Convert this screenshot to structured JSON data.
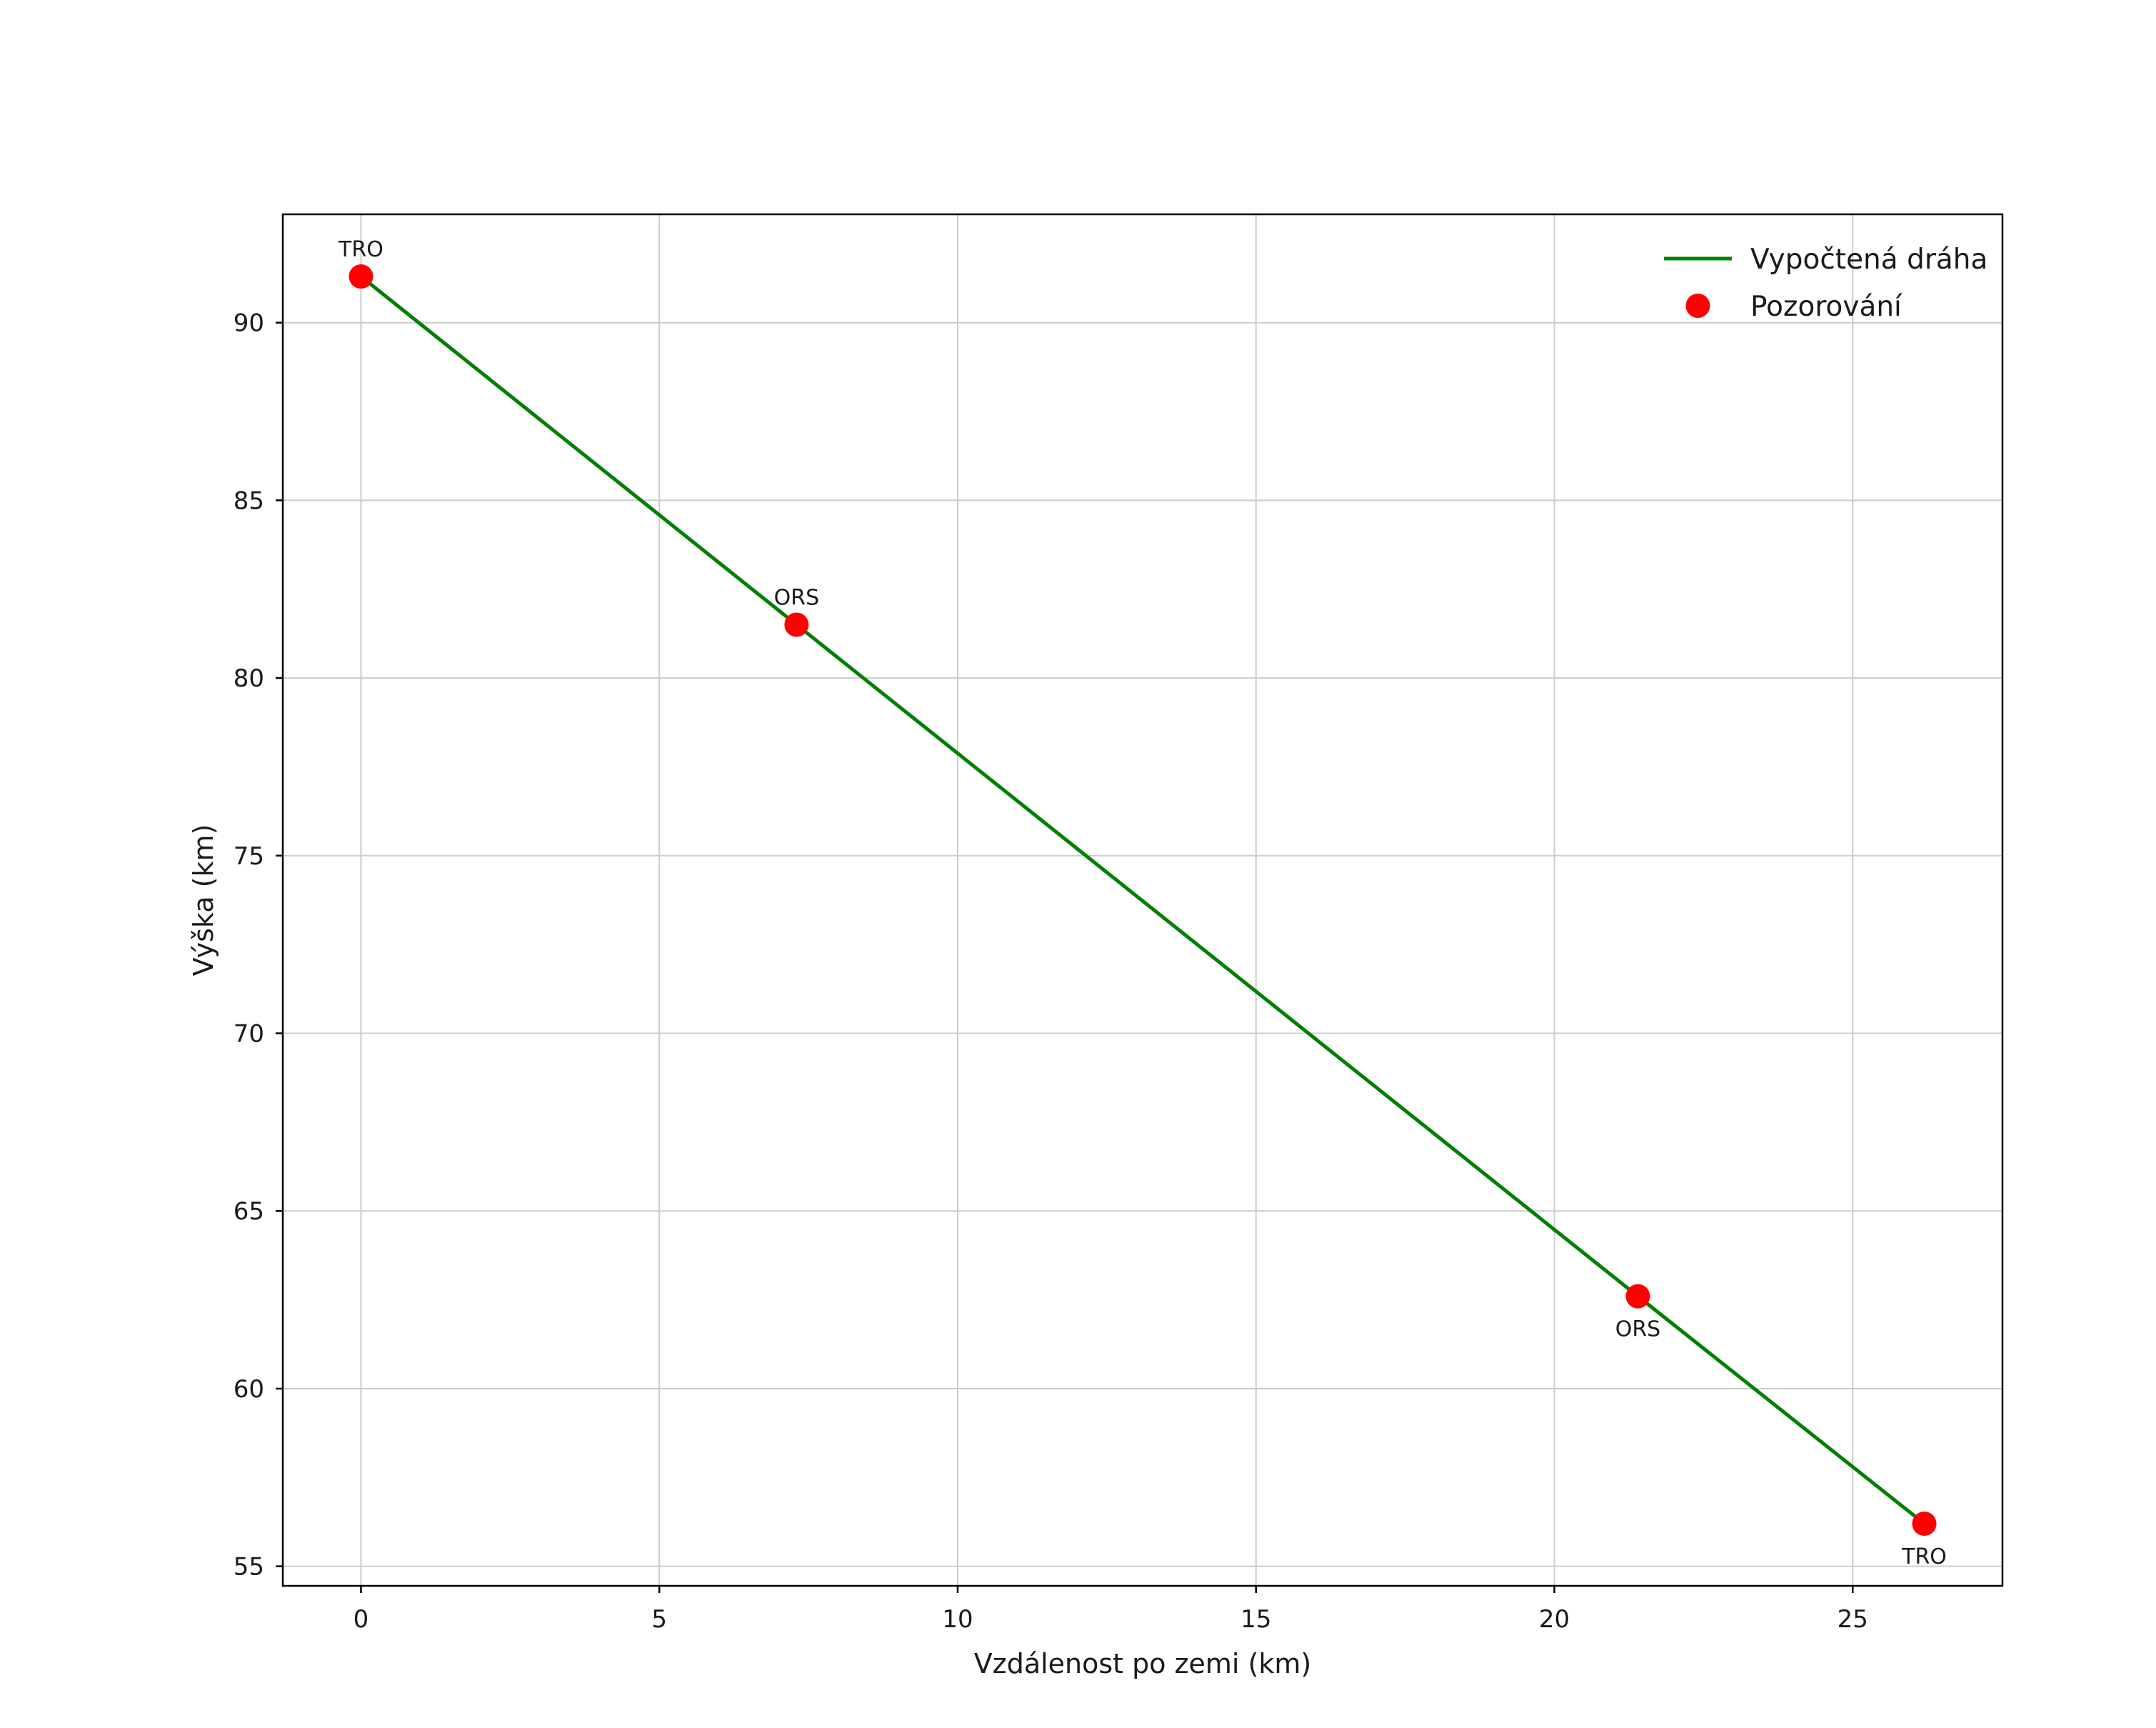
{
  "chart_data": {
    "type": "line",
    "title": "",
    "xlabel": "Vzdálenost po zemi (km)",
    "ylabel": "Výška (km)",
    "xlim": [
      -1.31,
      27.51
    ],
    "ylim": [
      54.45,
      93.05
    ],
    "xticks": [
      0,
      5,
      10,
      15,
      20,
      25
    ],
    "yticks": [
      55,
      60,
      65,
      70,
      75,
      80,
      85,
      90
    ],
    "grid": true,
    "colors": {
      "line": "#008000",
      "points": "#ff0000",
      "grid": "#cccccc",
      "frame": "#000000",
      "text": "#1a1a1a"
    },
    "series": [
      {
        "name": "Vypočtená dráha",
        "type": "line",
        "color": "#008000",
        "x": [
          0,
          7.3,
          21.4,
          26.2
        ],
        "y": [
          91.3,
          81.5,
          62.6,
          56.2
        ]
      },
      {
        "name": "Pozorování",
        "type": "scatter",
        "color": "#ff0000",
        "x": [
          0,
          7.3,
          21.4,
          26.2
        ],
        "y": [
          91.3,
          81.5,
          62.6,
          56.2
        ]
      }
    ],
    "point_labels": [
      {
        "text": "TRO",
        "x": 0,
        "y": 91.3,
        "position": "above"
      },
      {
        "text": "ORS",
        "x": 7.3,
        "y": 81.5,
        "position": "above"
      },
      {
        "text": "ORS",
        "x": 21.4,
        "y": 62.6,
        "position": "below"
      },
      {
        "text": "TRO",
        "x": 26.2,
        "y": 56.2,
        "position": "below"
      }
    ],
    "legend": {
      "location": "upper right",
      "entries": [
        {
          "label": "Vypočtená dráha",
          "marker": "line",
          "color": "#008000"
        },
        {
          "label": "Pozorování",
          "marker": "point",
          "color": "#ff0000"
        }
      ]
    }
  }
}
